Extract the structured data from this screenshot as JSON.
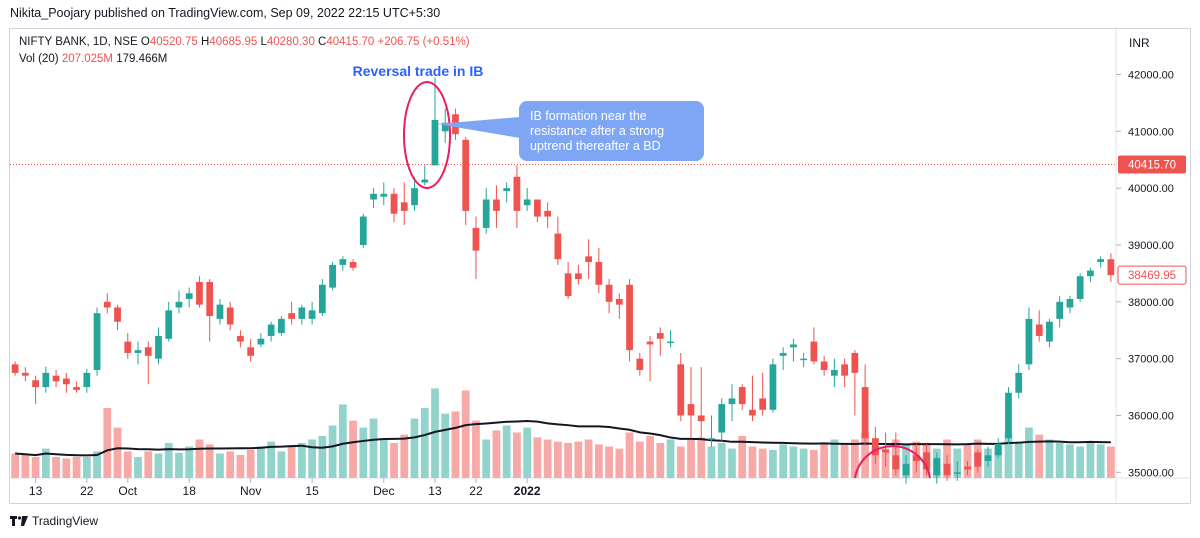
{
  "publisher": "Nikita_Poojary published on TradingView.com, Sep 09, 2022 22:15 UTC+5:30",
  "legend": {
    "symbol": "NIFTY BANK, 1D, NSE",
    "o_label": "O",
    "o": "40520.75",
    "h_label": "H",
    "h": "40685.95",
    "l_label": "L",
    "l": "40280.30",
    "c_label": "C",
    "c": "40415.70",
    "change": "+206.75 (+0.51%)",
    "vol_label": "Vol (20)",
    "vol": "207.025M",
    "vol_ma": "179.466M"
  },
  "currency": "INR",
  "footer": {
    "brand": "TradingView"
  },
  "colors": {
    "up": "#26a69a",
    "down": "#ef5350",
    "up_vol": "#92d3cc",
    "down_vol": "#f7a9a7",
    "annotation": "#2962ff",
    "circle": "#e91e63",
    "callout": "#7ea6f5"
  },
  "chart_data": {
    "type": "candlestick",
    "ylim": [
      34900,
      42800
    ],
    "y_ticks": [
      35000,
      36000,
      37000,
      38000,
      39000,
      40000,
      41000,
      42000
    ],
    "y_tick_labels": [
      "35000.00",
      "36000.00",
      "37000.00",
      "38000.00",
      "39000.00",
      "40000.00",
      "41000.00",
      "42000.00"
    ],
    "x_ticks": [
      {
        "index": 2,
        "label": "13"
      },
      {
        "index": 7,
        "label": "22"
      },
      {
        "index": 11,
        "label": "Oct"
      },
      {
        "index": 17,
        "label": "18"
      },
      {
        "index": 23,
        "label": "Nov"
      },
      {
        "index": 29,
        "label": "15"
      },
      {
        "index": 36,
        "label": "Dec"
      },
      {
        "index": 41,
        "label": "13"
      },
      {
        "index": 45,
        "label": "22"
      },
      {
        "index": 50,
        "label": "2022"
      }
    ],
    "last_price": {
      "value": 40415.7,
      "label": "40415.70"
    },
    "current_close": {
      "value": 38469.95,
      "label": "38469.95"
    },
    "candles": [
      [
        36900,
        36950,
        36700,
        36750
      ],
      [
        36750,
        36850,
        36600,
        36700
      ],
      [
        36620,
        36700,
        36200,
        36500
      ],
      [
        36500,
        36860,
        36400,
        36750
      ],
      [
        36700,
        36800,
        36500,
        36600
      ],
      [
        36650,
        36750,
        36400,
        36550
      ],
      [
        36500,
        36600,
        36400,
        36450
      ],
      [
        36500,
        36820,
        36400,
        36750
      ],
      [
        36800,
        37900,
        36700,
        37800
      ],
      [
        38000,
        38150,
        37800,
        37900
      ],
      [
        37900,
        37950,
        37500,
        37650
      ],
      [
        37300,
        37450,
        37000,
        37100
      ],
      [
        37100,
        37300,
        36900,
        37150
      ],
      [
        37200,
        37300,
        36550,
        37050
      ],
      [
        37000,
        37550,
        36900,
        37400
      ],
      [
        37350,
        38000,
        37300,
        37850
      ],
      [
        37900,
        38200,
        37800,
        38000
      ],
      [
        38050,
        38250,
        37900,
        38150
      ],
      [
        38350,
        38450,
        37900,
        37950
      ],
      [
        38350,
        38400,
        37300,
        37750
      ],
      [
        37700,
        38050,
        37600,
        37950
      ],
      [
        37900,
        38000,
        37500,
        37600
      ],
      [
        37400,
        37500,
        37200,
        37300
      ],
      [
        37200,
        37350,
        36950,
        37050
      ],
      [
        37250,
        37450,
        37200,
        37350
      ],
      [
        37400,
        37650,
        37300,
        37600
      ],
      [
        37450,
        37750,
        37400,
        37700
      ],
      [
        37800,
        38000,
        37600,
        37700
      ],
      [
        37700,
        37950,
        37600,
        37900
      ],
      [
        37700,
        38000,
        37600,
        37850
      ],
      [
        37800,
        38400,
        37750,
        38300
      ],
      [
        38250,
        38700,
        38200,
        38650
      ],
      [
        38650,
        38800,
        38550,
        38750
      ],
      [
        38700,
        38750,
        38550,
        38600
      ],
      [
        39000,
        39550,
        38950,
        39500
      ],
      [
        39800,
        40000,
        39650,
        39900
      ],
      [
        39850,
        40100,
        39700,
        39900
      ],
      [
        39900,
        40000,
        39400,
        39550
      ],
      [
        39750,
        40100,
        39350,
        39600
      ],
      [
        39700,
        40200,
        39600,
        40000
      ],
      [
        40100,
        40400,
        40050,
        40150
      ],
      [
        40400,
        41950,
        40450,
        41200
      ],
      [
        41000,
        41400,
        40800,
        41150
      ],
      [
        41300,
        41400,
        40850,
        40950
      ],
      [
        40850,
        40900,
        39350,
        39600
      ],
      [
        39300,
        39500,
        38400,
        38900
      ],
      [
        39300,
        40000,
        39200,
        39800
      ],
      [
        39800,
        40050,
        39300,
        39600
      ],
      [
        39950,
        40100,
        39750,
        40000
      ],
      [
        40200,
        40400,
        39300,
        39600
      ],
      [
        39700,
        40000,
        39600,
        39800
      ],
      [
        39800,
        39800,
        39400,
        39500
      ],
      [
        39600,
        39750,
        39300,
        39500
      ],
      [
        39200,
        39500,
        38650,
        38750
      ],
      [
        38500,
        38700,
        38050,
        38100
      ],
      [
        38500,
        38650,
        38300,
        38400
      ],
      [
        38800,
        39100,
        38400,
        38700
      ],
      [
        38700,
        38950,
        38150,
        38300
      ],
      [
        38300,
        38400,
        37800,
        38000
      ],
      [
        38050,
        38150,
        37700,
        37950
      ],
      [
        38300,
        38400,
        36950,
        37150
      ],
      [
        37000,
        37100,
        36700,
        36800
      ],
      [
        37300,
        37400,
        36600,
        37250
      ],
      [
        37450,
        37550,
        37050,
        37350
      ],
      [
        37300,
        37500,
        37200,
        37300
      ],
      [
        36900,
        37100,
        35900,
        36000
      ],
      [
        36200,
        36850,
        35600,
        36000
      ],
      [
        36000,
        36850,
        35600,
        35900
      ],
      [
        35600,
        36000,
        35450,
        35600
      ],
      [
        35700,
        36300,
        35550,
        36200
      ],
      [
        36200,
        36550,
        35900,
        36300
      ],
      [
        36500,
        36550,
        36100,
        36200
      ],
      [
        36100,
        36700,
        35900,
        36000
      ],
      [
        36300,
        36750,
        36000,
        36100
      ],
      [
        36100,
        37000,
        36050,
        36900
      ],
      [
        37050,
        37200,
        36800,
        37100
      ],
      [
        37200,
        37350,
        36950,
        37250
      ],
      [
        37000,
        37100,
        36850,
        37000
      ],
      [
        37300,
        37550,
        36900,
        36950
      ],
      [
        36950,
        37050,
        36700,
        36800
      ],
      [
        36700,
        37000,
        36500,
        36800
      ],
      [
        36900,
        37000,
        36500,
        36700
      ],
      [
        37100,
        37150,
        36000,
        36750
      ],
      [
        36500,
        36900,
        35500,
        35600
      ],
      [
        35600,
        35800,
        35150,
        35300
      ],
      [
        35400,
        35700,
        35100,
        35350
      ],
      [
        35300,
        35700,
        34950,
        35050
      ],
      [
        34950,
        35300,
        34800,
        35150
      ],
      [
        35300,
        35500,
        35000,
        35200
      ],
      [
        35350,
        35500,
        34950,
        35050
      ],
      [
        34950,
        35350,
        34800,
        35250
      ],
      [
        35150,
        35300,
        34850,
        34950
      ],
      [
        35000,
        35200,
        34850,
        35000
      ],
      [
        35100,
        35200,
        34950,
        35050
      ],
      [
        35350,
        35400,
        35000,
        35100
      ],
      [
        35200,
        35450,
        35100,
        35300
      ],
      [
        35300,
        35600,
        35250,
        35500
      ],
      [
        35600,
        36500,
        35500,
        36400
      ],
      [
        36400,
        36900,
        36300,
        36750
      ],
      [
        36900,
        37900,
        36800,
        37700
      ],
      [
        37600,
        37850,
        37300,
        37400
      ],
      [
        37300,
        37700,
        37200,
        37650
      ],
      [
        37700,
        38100,
        37550,
        38000
      ],
      [
        37900,
        38100,
        37800,
        38050
      ],
      [
        38050,
        38500,
        38000,
        38450
      ],
      [
        38450,
        38600,
        38350,
        38550
      ],
      [
        38700,
        38800,
        38600,
        38750
      ],
      [
        38750,
        38850,
        38350,
        38470
      ]
    ],
    "volume_proxy_levels": [
      0.35,
      0.33,
      0.3,
      0.42,
      0.3,
      0.28,
      0.3,
      0.3,
      0.38,
      1.0,
      0.72,
      0.38,
      0.3,
      0.38,
      0.35,
      0.5,
      0.36,
      0.45,
      0.55,
      0.48,
      0.35,
      0.38,
      0.33,
      0.4,
      0.45,
      0.52,
      0.38,
      0.45,
      0.5,
      0.55,
      0.6,
      0.75,
      1.05,
      0.82,
      0.72,
      0.85,
      0.55,
      0.5,
      0.62,
      0.85,
      1.0,
      1.28,
      0.92,
      0.95,
      1.25,
      0.82,
      0.55,
      0.68,
      0.75,
      0.65,
      0.72,
      0.58,
      0.55,
      0.52,
      0.5,
      0.52,
      0.55,
      0.48,
      0.45,
      0.42,
      0.65,
      0.52,
      0.6,
      0.5,
      0.55,
      0.45,
      0.55,
      0.58,
      0.45,
      0.5,
      0.42,
      0.6,
      0.45,
      0.42,
      0.4,
      0.48,
      0.45,
      0.42,
      0.4,
      0.5,
      0.55,
      0.48,
      0.55,
      0.65,
      0.45,
      0.42,
      0.55,
      0.48,
      0.52,
      0.5,
      0.42,
      0.55,
      0.42,
      0.48,
      0.55,
      0.42,
      0.45,
      0.65,
      0.5,
      0.72,
      0.62,
      0.55,
      0.5,
      0.48,
      0.45,
      0.5,
      0.48,
      0.45
    ],
    "annotations": [
      {
        "text": "Reversal trade in IB"
      },
      {
        "text": "IB formation near the resistance after a strong uptrend thereafter a BD",
        "lines": [
          "IB formation near the",
          "resistance after a strong",
          "uptrend thereafter a BD"
        ]
      }
    ]
  }
}
